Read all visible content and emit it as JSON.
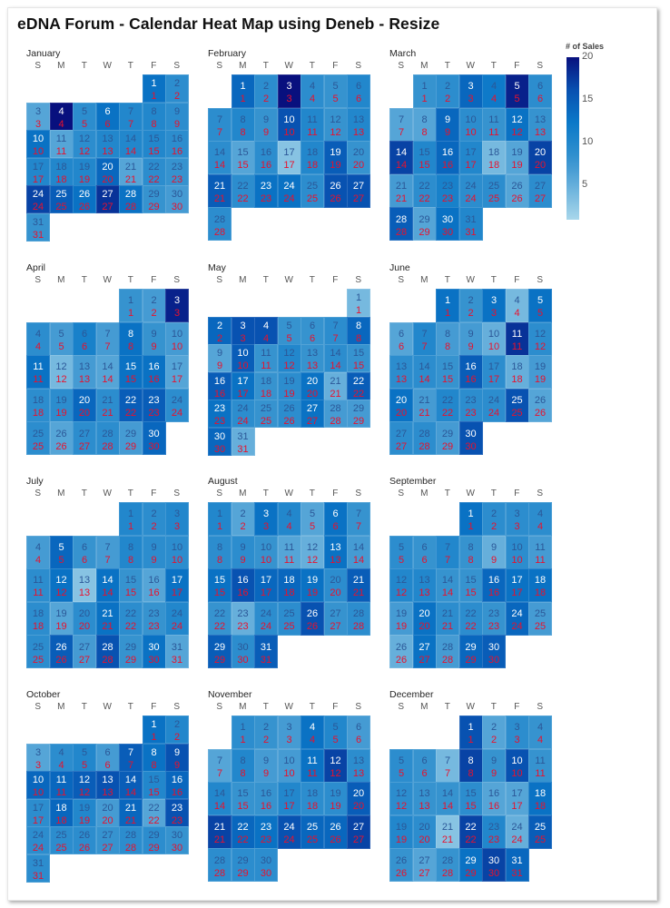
{
  "title": "eDNA Forum - Calendar Heat Map using Deneb - Resize",
  "colors": {
    "low": "#a8d7eb",
    "mid": "#0a78c8",
    "high": "#08107e",
    "secondary_text": "#e8112d",
    "dark_text": "#2b5797",
    "light_text": "#ffffff"
  },
  "chart_data": {
    "type": "heatmap",
    "weekday_labels": [
      "S",
      "M",
      "T",
      "W",
      "T",
      "F",
      "S"
    ],
    "legend": {
      "title": "# of Sales",
      "ticks": [
        5,
        10,
        15,
        20
      ],
      "domain": [
        1,
        20
      ],
      "placement": "right"
    },
    "months": [
      {
        "name": "January",
        "values": [
          13,
          9,
          6,
          20,
          9,
          13,
          10,
          10,
          9,
          13,
          6,
          9,
          10,
          10,
          10,
          9,
          10,
          10,
          10,
          14,
          6,
          9,
          8,
          17,
          15,
          13,
          18,
          13,
          8,
          7,
          8
        ]
      },
      {
        "name": "February",
        "values": [
          14,
          9,
          20,
          9,
          8,
          10,
          9,
          10,
          8,
          16,
          10,
          8,
          10,
          9,
          6,
          9,
          3,
          10,
          15,
          8,
          15,
          9,
          13,
          13,
          9,
          16,
          16,
          9
        ]
      },
      {
        "name": "March",
        "values": [
          8,
          9,
          14,
          12,
          19,
          9,
          6,
          6,
          14,
          9,
          8,
          13,
          8,
          17,
          10,
          14,
          10,
          4,
          6,
          17,
          7,
          9,
          11,
          9,
          9,
          6,
          9,
          15,
          6,
          13,
          10
        ]
      },
      {
        "name": "April",
        "values": [
          8,
          7,
          19,
          9,
          7,
          11,
          7,
          13,
          8,
          7,
          13,
          4,
          7,
          6,
          13,
          13,
          6,
          9,
          9,
          14,
          9,
          15,
          15,
          9,
          9,
          6,
          9,
          9,
          7,
          14
        ]
      },
      {
        "name": "May",
        "values": [
          4,
          14,
          16,
          16,
          8,
          8,
          9,
          14,
          6,
          15,
          8,
          10,
          8,
          9,
          8,
          15,
          13,
          8,
          9,
          13,
          5,
          15,
          13,
          9,
          8,
          9,
          13,
          7,
          7,
          14,
          5
        ]
      },
      {
        "name": "June",
        "values": [
          13,
          8,
          13,
          4,
          13,
          6,
          10,
          7,
          7,
          5,
          18,
          9,
          9,
          9,
          8,
          15,
          9,
          5,
          7,
          13,
          7,
          10,
          9,
          9,
          16,
          6,
          9,
          9,
          7,
          16
        ]
      },
      {
        "name": "July",
        "values": [
          10,
          9,
          10,
          7,
          14,
          8,
          7,
          10,
          9,
          9,
          9,
          13,
          3,
          13,
          8,
          6,
          13,
          9,
          6,
          9,
          13,
          9,
          8,
          10,
          9,
          15,
          7,
          16,
          8,
          13,
          6
        ]
      },
      {
        "name": "August",
        "values": [
          10,
          6,
          13,
          10,
          6,
          13,
          8,
          9,
          9,
          8,
          6,
          5,
          13,
          7,
          13,
          16,
          14,
          14,
          13,
          9,
          15,
          8,
          5,
          9,
          9,
          16,
          8,
          9,
          15,
          9,
          15
        ]
      },
      {
        "name": "September",
        "values": [
          13,
          9,
          9,
          9,
          9,
          8,
          10,
          8,
          5,
          9,
          7,
          10,
          10,
          8,
          8,
          14,
          13,
          13,
          7,
          13,
          9,
          9,
          8,
          14,
          7,
          5,
          13,
          7,
          14,
          15
        ]
      },
      {
        "name": "October",
        "values": [
          13,
          10,
          6,
          9,
          10,
          7,
          15,
          13,
          16,
          14,
          14,
          15,
          16,
          15,
          10,
          14,
          9,
          14,
          10,
          7,
          14,
          6,
          16,
          9,
          9,
          9,
          8,
          9,
          9,
          8,
          9
        ]
      },
      {
        "name": "November",
        "values": [
          9,
          8,
          7,
          13,
          10,
          7,
          6,
          10,
          7,
          7,
          13,
          17,
          9,
          10,
          8,
          8,
          10,
          9,
          9,
          15,
          17,
          14,
          13,
          16,
          14,
          14,
          17,
          9,
          9,
          9
        ]
      },
      {
        "name": "December",
        "values": [
          16,
          6,
          9,
          8,
          9,
          8,
          4,
          17,
          8,
          16,
          8,
          9,
          8,
          8,
          9,
          6,
          6,
          13,
          10,
          9,
          3,
          17,
          10,
          5,
          15,
          8,
          6,
          8,
          13,
          17,
          14
        ]
      }
    ]
  }
}
